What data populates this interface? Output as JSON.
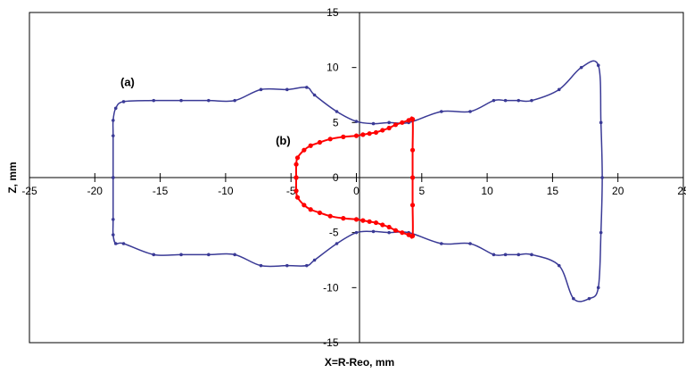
{
  "chart_data": {
    "type": "line",
    "xlabel": "X=R-Reo, mm",
    "ylabel": "Z, mm",
    "xlim": [
      -25,
      25
    ],
    "ylim": [
      -15,
      15
    ],
    "x_ticks": [
      "-25",
      "-20",
      "-15",
      "-10",
      "-5",
      "0",
      "5",
      "10",
      "15",
      "20",
      "25"
    ],
    "y_ticks": [
      "-15",
      "-10",
      "-5",
      "0",
      "5",
      "10",
      "15"
    ],
    "grid": false,
    "legend": "none",
    "annotations": [
      {
        "text": "(a)",
        "x": -17.5,
        "y": 8.3
      },
      {
        "text": "(b)",
        "x": -5.6,
        "y": 3.0
      }
    ],
    "series": [
      {
        "color": "#3a3a96",
        "values": [
          [
            -18.6,
            0
          ],
          [
            -18.6,
            3.8
          ],
          [
            -18.6,
            5.2
          ],
          [
            -18.4,
            6.3
          ],
          [
            -17.8,
            6.9
          ],
          [
            -15.5,
            7.0
          ],
          [
            -13.4,
            7.0
          ],
          [
            -11.3,
            7.0
          ],
          [
            -9.3,
            7.0
          ],
          [
            -7.3,
            8.0
          ],
          [
            -5.3,
            8.0
          ],
          [
            -3.8,
            8.2
          ],
          [
            -3.2,
            7.5
          ],
          [
            -1.5,
            6.0
          ],
          [
            0,
            5.1
          ],
          [
            1.3,
            4.9
          ],
          [
            2.5,
            5.0
          ],
          [
            4.0,
            5.0
          ],
          [
            6.5,
            6.0
          ],
          [
            8.7,
            6.0
          ],
          [
            10.5,
            7.0
          ],
          [
            11.4,
            7.0
          ],
          [
            12.4,
            7.0
          ],
          [
            13.4,
            7.0
          ],
          [
            15.5,
            8.0
          ],
          [
            17.2,
            10.0
          ],
          [
            18.5,
            10.2
          ],
          [
            18.7,
            5.0
          ],
          [
            18.8,
            0
          ],
          [
            18.7,
            -5.0
          ],
          [
            18.5,
            -10.0
          ],
          [
            17.8,
            -11.0
          ],
          [
            16.6,
            -11.0
          ],
          [
            15.5,
            -8.0
          ],
          [
            13.4,
            -7.0
          ],
          [
            12.4,
            -7.0
          ],
          [
            11.4,
            -7.0
          ],
          [
            10.5,
            -7.0
          ],
          [
            8.7,
            -6.0
          ],
          [
            6.5,
            -6.0
          ],
          [
            4.0,
            -5.0
          ],
          [
            2.5,
            -5.0
          ],
          [
            1.3,
            -4.9
          ],
          [
            0,
            -5.0
          ],
          [
            -1.5,
            -6.0
          ],
          [
            -3.2,
            -7.5
          ],
          [
            -3.8,
            -8.0
          ],
          [
            -5.3,
            -8.0
          ],
          [
            -7.3,
            -8.0
          ],
          [
            -9.3,
            -7.0
          ],
          [
            -11.3,
            -7.0
          ],
          [
            -13.4,
            -7.0
          ],
          [
            -15.5,
            -7.0
          ],
          [
            -17.8,
            -6.0
          ],
          [
            -18.4,
            -6.0
          ],
          [
            -18.6,
            -5.2
          ],
          [
            -18.6,
            -3.8
          ],
          [
            -18.6,
            0
          ]
        ]
      },
      {
        "color": "#ff0000",
        "values": [
          [
            -4.6,
            0
          ],
          [
            -4.6,
            1.2
          ],
          [
            -4.5,
            1.8
          ],
          [
            -4.0,
            2.5
          ],
          [
            -3.5,
            2.9
          ],
          [
            -2.8,
            3.2
          ],
          [
            -2.0,
            3.5
          ],
          [
            -1.0,
            3.7
          ],
          [
            0,
            3.8
          ],
          [
            0.5,
            3.9
          ],
          [
            1.0,
            4.0
          ],
          [
            1.5,
            4.1
          ],
          [
            2.0,
            4.3
          ],
          [
            2.5,
            4.5
          ],
          [
            3.0,
            4.8
          ],
          [
            3.5,
            5.0
          ],
          [
            4.0,
            5.2
          ],
          [
            4.3,
            5.3
          ],
          [
            4.3,
            2.5
          ],
          [
            4.3,
            0
          ],
          [
            4.3,
            -2.5
          ],
          [
            4.3,
            -5.3
          ],
          [
            4.0,
            -5.2
          ],
          [
            3.5,
            -5.0
          ],
          [
            3.0,
            -4.8
          ],
          [
            2.5,
            -4.5
          ],
          [
            2.0,
            -4.3
          ],
          [
            1.5,
            -4.1
          ],
          [
            1.0,
            -4.0
          ],
          [
            0.5,
            -3.9
          ],
          [
            0,
            -3.8
          ],
          [
            -1.0,
            -3.7
          ],
          [
            -2.0,
            -3.5
          ],
          [
            -2.8,
            -3.2
          ],
          [
            -3.5,
            -2.9
          ],
          [
            -4.0,
            -2.5
          ],
          [
            -4.5,
            -1.8
          ],
          [
            -4.6,
            -1.2
          ],
          [
            -4.6,
            0
          ]
        ]
      }
    ]
  }
}
